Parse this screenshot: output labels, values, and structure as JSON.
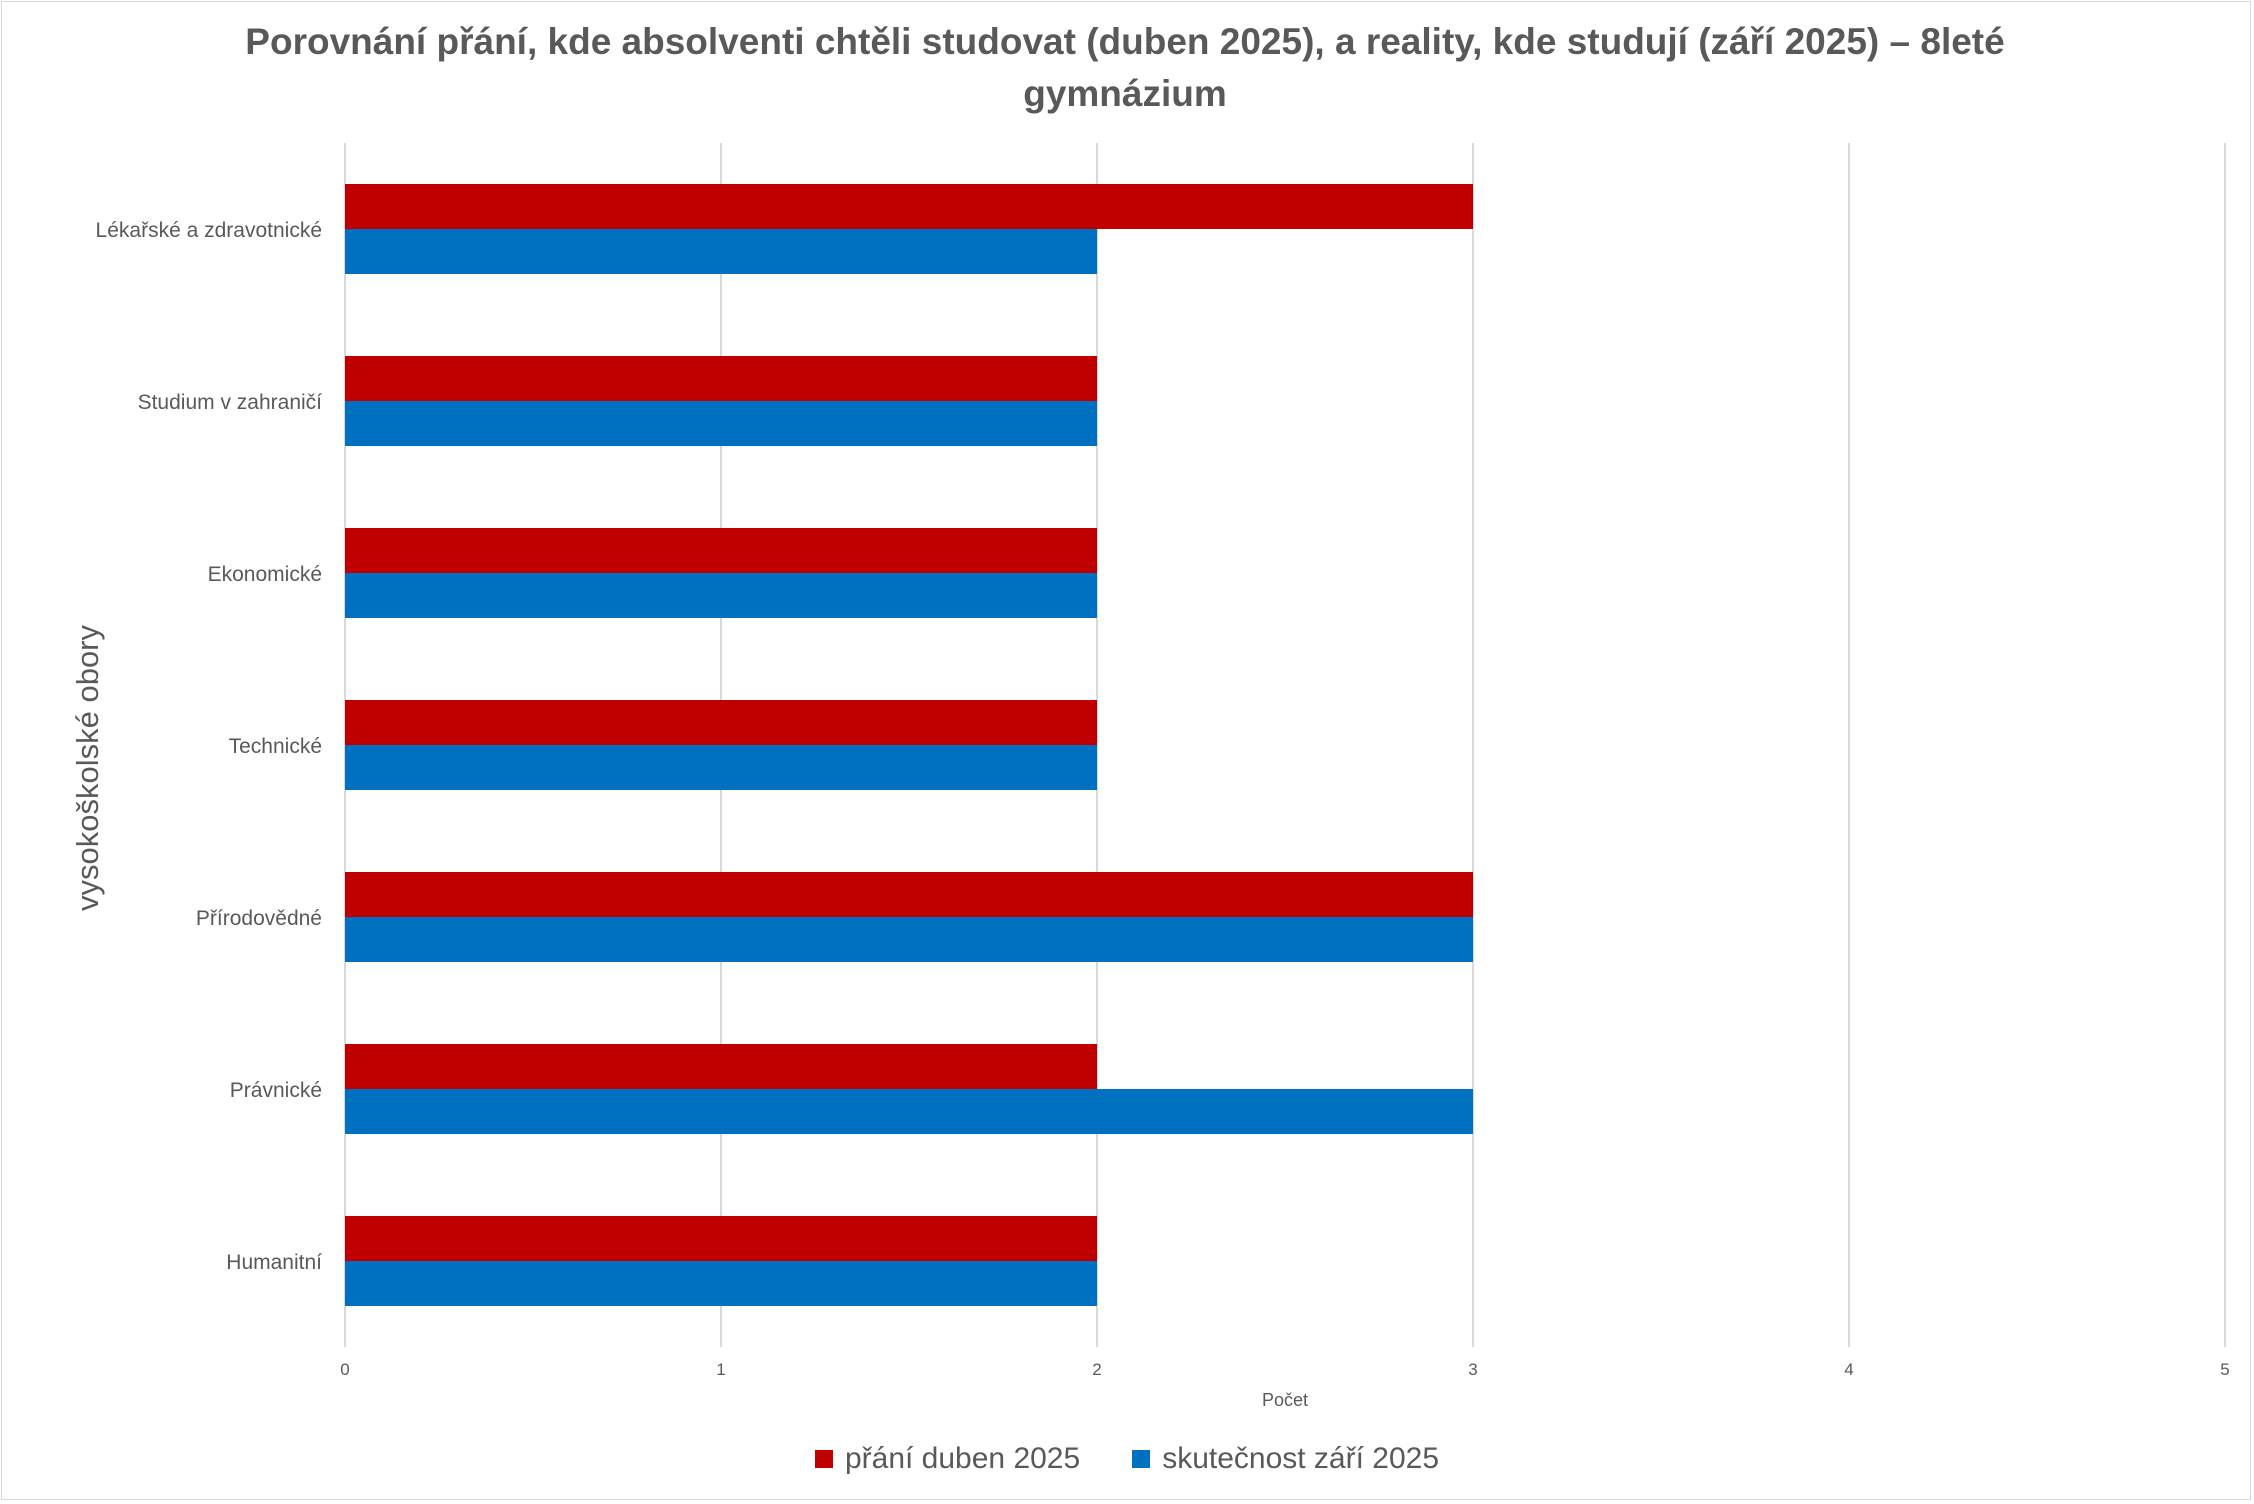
{
  "chart_data": {
    "type": "bar",
    "orientation": "horizontal",
    "title": "Porovnání přání, kde absolventi chtěli studovat (duben 2025), a reality, kde studují (září 2025) – 8leté gymnázium",
    "xlabel": "Počet",
    "ylabel": "vysokoškolské obory",
    "xlim": [
      0,
      5
    ],
    "xticks": [
      "0",
      "1",
      "2",
      "3",
      "4",
      "5"
    ],
    "grid": true,
    "legend_position": "bottom",
    "categories": [
      "Lékařské a zdravotnické",
      "Studium v zahraničí",
      "Ekonomické",
      "Technické",
      "Přírodovědné",
      "Právnické",
      "Humanitní"
    ],
    "series": [
      {
        "name": "přání duben 2025",
        "color": "#c00000",
        "values": [
          3,
          2,
          2,
          2,
          3,
          2,
          2
        ]
      },
      {
        "name": "skutečnost září 2025",
        "color": "#0070c0",
        "values": [
          2,
          2,
          2,
          2,
          3,
          3,
          2
        ]
      }
    ]
  }
}
